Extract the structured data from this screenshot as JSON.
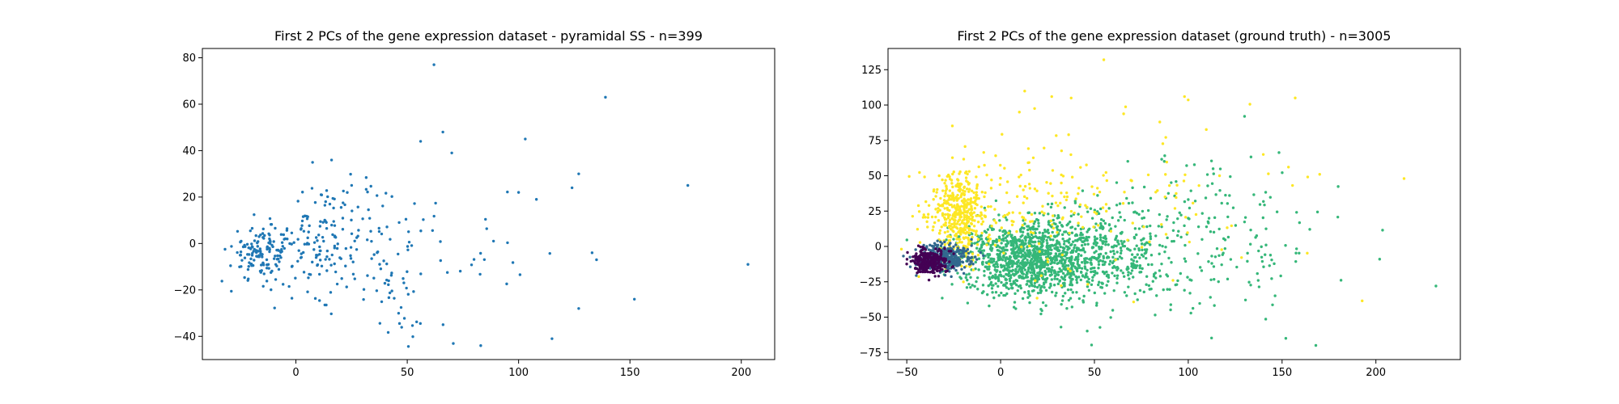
{
  "chart_data": [
    {
      "type": "scatter",
      "title": "First 2 PCs of the gene expression dataset - pyramidal SS - n=399",
      "xlabel": "",
      "ylabel": "",
      "xlim": [
        -42,
        215
      ],
      "ylim": [
        -50,
        84
      ],
      "xticks": [
        0,
        50,
        100,
        150,
        200
      ],
      "yticks": [
        -40,
        -20,
        0,
        20,
        40,
        60,
        80
      ],
      "grid": false,
      "legend": "none",
      "colors": {
        "points": "#1f77b4"
      },
      "n": 399,
      "notable_points": [
        {
          "x": 62,
          "y": 77
        },
        {
          "x": 139,
          "y": 63
        },
        {
          "x": 176,
          "y": 25
        },
        {
          "x": 203,
          "y": -9
        },
        {
          "x": 152,
          "y": -24
        },
        {
          "x": 115,
          "y": -41
        },
        {
          "x": 83,
          "y": -44
        },
        {
          "x": 103,
          "y": 45
        },
        {
          "x": 66,
          "y": 48
        },
        {
          "x": 70,
          "y": 39
        },
        {
          "x": 56,
          "y": 44
        },
        {
          "x": 127,
          "y": 30
        },
        {
          "x": 124,
          "y": 24
        },
        {
          "x": 100,
          "y": 22
        },
        {
          "x": 108,
          "y": 19
        },
        {
          "x": 127,
          "y": -28
        },
        {
          "x": 133,
          "y": -4
        },
        {
          "x": 135,
          "y": -7
        }
      ],
      "clusters": [
        {
          "cx": -15,
          "cy": -4,
          "sx": 7,
          "sy": 6,
          "n": 140
        },
        {
          "cx": 8,
          "cy": -2,
          "sx": 9,
          "sy": 9,
          "n": 95
        },
        {
          "cx": 24,
          "cy": 5,
          "sx": 12,
          "sy": 14,
          "n": 75
        },
        {
          "cx": 48,
          "cy": -14,
          "sx": 12,
          "sy": 15,
          "n": 50
        },
        {
          "cx": 85,
          "cy": -5,
          "sx": 20,
          "sy": 15,
          "n": 21
        }
      ]
    },
    {
      "type": "scatter",
      "title": "First 2 PCs of the gene expression dataset (ground truth) - n=3005",
      "xlabel": "",
      "ylabel": "",
      "xlim": [
        -60,
        245
      ],
      "ylim": [
        -80,
        140
      ],
      "xticks": [
        -50,
        0,
        50,
        100,
        150,
        200
      ],
      "yticks": [
        -75,
        -50,
        -25,
        0,
        25,
        50,
        75,
        100,
        125
      ],
      "grid": false,
      "legend": "none",
      "n": 3005,
      "series": [
        {
          "color": "#35b779",
          "n": 1700,
          "clusters": [
            {
              "cx": 15,
              "cy": -8,
              "sx": 18,
              "sy": 13,
              "n": 1100
            },
            {
              "cx": 55,
              "cy": -5,
              "sx": 20,
              "sy": 18,
              "n": 420
            },
            {
              "cx": 110,
              "cy": 5,
              "sx": 35,
              "sy": 25,
              "n": 180
            }
          ]
        },
        {
          "color": "#fde725",
          "n": 650,
          "clusters": [
            {
              "cx": -22,
              "cy": 22,
              "sx": 7,
              "sy": 16,
              "n": 420
            },
            {
              "cx": 10,
              "cy": 28,
              "sx": 25,
              "sy": 22,
              "n": 150
            },
            {
              "cx": 70,
              "cy": 40,
              "sx": 50,
              "sy": 35,
              "n": 80
            }
          ]
        },
        {
          "color": "#31688e",
          "n": 350,
          "clusters": [
            {
              "cx": -30,
              "cy": -8,
              "sx": 7,
              "sy": 5,
              "n": 350
            }
          ]
        },
        {
          "color": "#440154",
          "n": 305,
          "clusters": [
            {
              "cx": -38,
              "cy": -11,
              "sx": 5,
              "sy": 4,
              "n": 305
            }
          ]
        }
      ],
      "notable_points": [
        {
          "x": 55,
          "y": 132,
          "color": "#fde725"
        },
        {
          "x": 157,
          "y": 105,
          "color": "#fde725"
        },
        {
          "x": 232,
          "y": -28,
          "color": "#35b779"
        },
        {
          "x": 215,
          "y": 48,
          "color": "#fde725"
        },
        {
          "x": 168,
          "y": -70,
          "color": "#35b779"
        },
        {
          "x": 152,
          "y": -65,
          "color": "#35b779"
        },
        {
          "x": 202,
          "y": -9,
          "color": "#35b779"
        },
        {
          "x": 130,
          "y": 92,
          "color": "#35b779"
        },
        {
          "x": 10,
          "y": 95,
          "color": "#fde725"
        }
      ]
    }
  ]
}
